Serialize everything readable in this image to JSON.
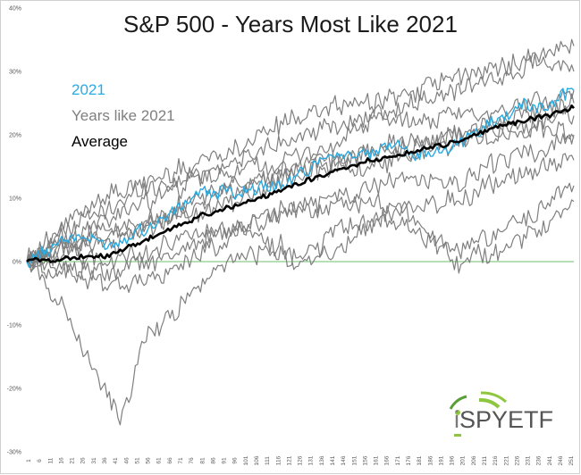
{
  "chart_data": {
    "type": "line",
    "title": "S&P 500 - Years Most Like 2021",
    "ylim": [
      -30,
      40
    ],
    "xlim": [
      1,
      253
    ],
    "ytick_values": [
      -30,
      -20,
      -10,
      0,
      10,
      20,
      30,
      40
    ],
    "ytick_labels": [
      "-30%",
      "-20%",
      "-10%",
      "0%",
      "10%",
      "20%",
      "30%",
      "40%"
    ],
    "xtick_values": [
      1,
      6,
      11,
      16,
      21,
      26,
      31,
      36,
      41,
      46,
      51,
      56,
      61,
      66,
      71,
      76,
      81,
      86,
      91,
      96,
      101,
      106,
      111,
      116,
      121,
      126,
      131,
      136,
      141,
      146,
      151,
      156,
      161,
      166,
      171,
      176,
      181,
      186,
      191,
      196,
      201,
      206,
      211,
      216,
      221,
      226,
      231,
      236,
      241,
      246,
      251
    ],
    "legend": {
      "placement": "top-left",
      "entries": [
        {
          "label": "2021",
          "color": "#29abe2"
        },
        {
          "label": "Years like 2021",
          "color": "#7f7f7f"
        },
        {
          "label": "Average",
          "color": "#000000"
        }
      ]
    },
    "series": [
      {
        "name": "2021",
        "color": "#29abe2",
        "width": 1.4,
        "x": [
          1,
          20,
          40,
          60,
          80,
          100,
          120,
          140,
          160,
          170,
          180,
          190,
          200,
          215,
          230,
          240,
          250,
          253
        ],
        "y": [
          0,
          4,
          3,
          6,
          11,
          11,
          12,
          17,
          17,
          19,
          17,
          17,
          19,
          22,
          25,
          24,
          27,
          27
        ]
      },
      {
        "color": "#7f7f7f",
        "width": 1.2,
        "x": [
          1,
          20,
          40,
          60,
          80,
          100,
          120,
          140,
          160,
          180,
          200,
          220,
          240,
          253
        ],
        "y": [
          0,
          6,
          11,
          13,
          16,
          18,
          22,
          24,
          25,
          27,
          29,
          31,
          33,
          34
        ]
      },
      {
        "color": "#7f7f7f",
        "width": 1.2,
        "x": [
          1,
          20,
          40,
          60,
          80,
          100,
          120,
          140,
          160,
          180,
          200,
          220,
          240,
          253
        ],
        "y": [
          0,
          4,
          7,
          10,
          13,
          14,
          16,
          18,
          22,
          25,
          27,
          29,
          32,
          30
        ]
      },
      {
        "color": "#7f7f7f",
        "width": 1.2,
        "x": [
          1,
          20,
          40,
          60,
          80,
          100,
          120,
          140,
          160,
          180,
          200,
          220,
          240,
          253
        ],
        "y": [
          0,
          5,
          9,
          12,
          14,
          16,
          19,
          21,
          23,
          22,
          23,
          24,
          25,
          27
        ]
      },
      {
        "color": "#7f7f7f",
        "width": 1.2,
        "x": [
          1,
          20,
          40,
          60,
          80,
          100,
          120,
          140,
          160,
          180,
          200,
          220,
          240,
          253
        ],
        "y": [
          0,
          3,
          4,
          6,
          8,
          10,
          13,
          15,
          18,
          19,
          20,
          22,
          24,
          25
        ]
      },
      {
        "color": "#7f7f7f",
        "width": 1.2,
        "x": [
          1,
          20,
          40,
          60,
          80,
          100,
          120,
          140,
          160,
          180,
          200,
          220,
          240,
          253
        ],
        "y": [
          0,
          2,
          3,
          6,
          9,
          12,
          14,
          15,
          17,
          18,
          20,
          21,
          21,
          19.5
        ]
      },
      {
        "color": "#7f7f7f",
        "width": 1.2,
        "x": [
          1,
          20,
          40,
          60,
          80,
          100,
          120,
          140,
          160,
          180,
          200,
          220,
          240,
          253
        ],
        "y": [
          0,
          3,
          5,
          7,
          10,
          12,
          14,
          16,
          15,
          17,
          19,
          20,
          22,
          23
        ]
      },
      {
        "color": "#7f7f7f",
        "width": 1.2,
        "x": [
          1,
          20,
          40,
          60,
          80,
          100,
          120,
          140,
          160,
          180,
          200,
          220,
          240,
          253
        ],
        "y": [
          0,
          -1,
          -2,
          0,
          3,
          6,
          8,
          10,
          12,
          13,
          12,
          16,
          18,
          20
        ]
      },
      {
        "color": "#7f7f7f",
        "width": 1.2,
        "x": [
          1,
          20,
          40,
          60,
          80,
          100,
          120,
          140,
          160,
          180,
          190,
          200,
          220,
          240,
          253
        ],
        "y": [
          0,
          -2,
          -4,
          -3,
          1,
          5,
          8,
          8,
          10,
          7,
          3,
          2,
          5,
          9,
          12
        ]
      },
      {
        "color": "#7f7f7f",
        "width": 1.2,
        "x": [
          1,
          20,
          30,
          40,
          45,
          55,
          70,
          85,
          100,
          120,
          135,
          150,
          170,
          190,
          200,
          220,
          240,
          253
        ],
        "y": [
          0,
          -8,
          -16,
          -22,
          -25,
          -12,
          -8,
          -2,
          1,
          1,
          2,
          6,
          6,
          3,
          0,
          2,
          6,
          9.5
        ]
      },
      {
        "color": "#7f7f7f",
        "width": 1.2,
        "x": [
          1,
          20,
          40,
          60,
          80,
          100,
          120,
          130,
          140,
          160,
          180,
          200,
          220,
          240,
          253
        ],
        "y": [
          0,
          1,
          0,
          2,
          4,
          5,
          2,
          -1,
          1,
          6,
          9,
          10,
          13,
          15,
          16
        ]
      },
      {
        "name": "Average",
        "color": "#000000",
        "width": 2.6,
        "x": [
          1,
          20,
          40,
          60,
          80,
          100,
          120,
          140,
          160,
          180,
          200,
          220,
          240,
          253
        ],
        "y": [
          0,
          0.5,
          1,
          4,
          7,
          9,
          11.5,
          14,
          16,
          17.5,
          19,
          21.5,
          23,
          24.2
        ]
      }
    ]
  },
  "logo": {
    "brand_i": "i",
    "brand_rest": "SPYETF"
  }
}
